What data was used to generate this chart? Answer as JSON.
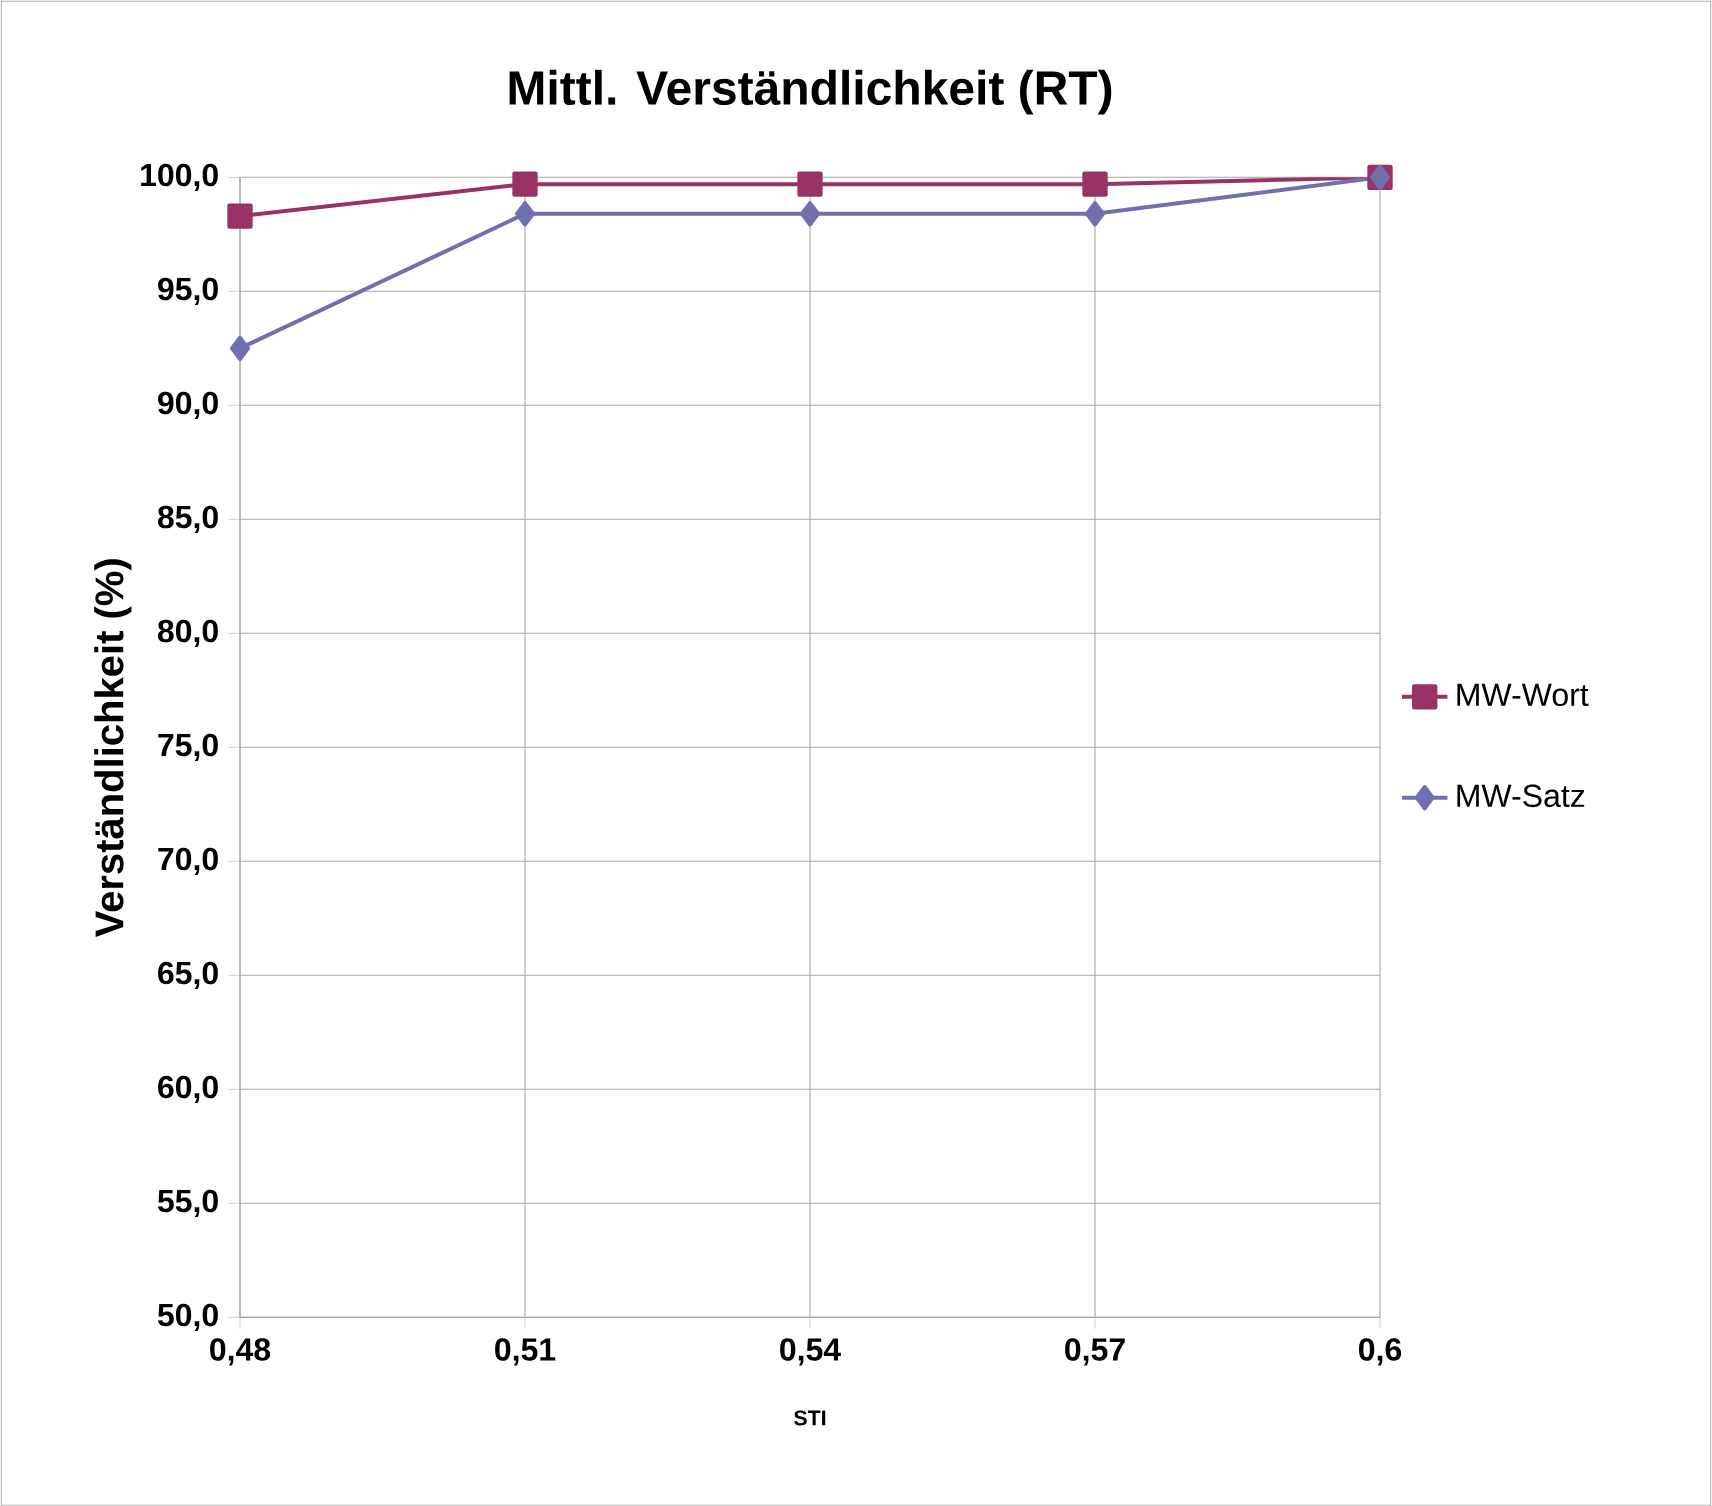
{
  "chart_data": {
    "type": "line",
    "title": "Mittl. Verständlichkeit (RT)",
    "xlabel": "STI",
    "ylabel": "Verständlichkeit (%)",
    "x": [
      0.48,
      0.51,
      0.54,
      0.57,
      0.6
    ],
    "series": [
      {
        "name": "MW-Wort",
        "color": "#993366",
        "marker": "square",
        "values": [
          98.3,
          99.7,
          99.7,
          99.7,
          100.0
        ]
      },
      {
        "name": "MW-Satz",
        "color": "#7070B0",
        "marker": "diamond",
        "values": [
          92.5,
          98.4,
          98.4,
          98.4,
          100.0
        ]
      }
    ],
    "xlim": [
      0.48,
      0.6
    ],
    "xticks": [
      {
        "value": 0.48,
        "label": "0,48"
      },
      {
        "value": 0.51,
        "label": "0,51"
      },
      {
        "value": 0.54,
        "label": "0,54"
      },
      {
        "value": 0.57,
        "label": "0,57"
      },
      {
        "value": 0.6,
        "label": "0,6"
      }
    ],
    "ylim": [
      50,
      100
    ],
    "yticks": [
      {
        "value": 50,
        "label": "50,0"
      },
      {
        "value": 55,
        "label": "55,0"
      },
      {
        "value": 60,
        "label": "60,0"
      },
      {
        "value": 65,
        "label": "65,0"
      },
      {
        "value": 70,
        "label": "70,0"
      },
      {
        "value": 75,
        "label": "75,0"
      },
      {
        "value": 80,
        "label": "80,0"
      },
      {
        "value": 85,
        "label": "85,0"
      },
      {
        "value": 90,
        "label": "90,0"
      },
      {
        "value": 95,
        "label": "95,0"
      },
      {
        "value": 100,
        "label": "100,0"
      }
    ],
    "grid": true,
    "legend": "right",
    "line_style": "solid"
  }
}
